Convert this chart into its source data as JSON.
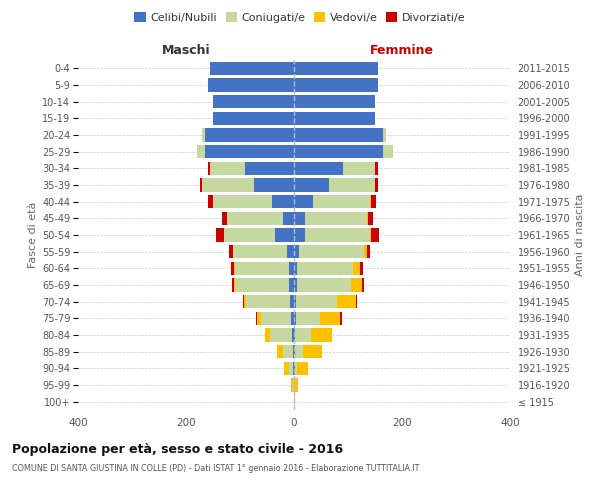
{
  "age_groups": [
    "100+",
    "95-99",
    "90-94",
    "85-89",
    "80-84",
    "75-79",
    "70-74",
    "65-69",
    "60-64",
    "55-59",
    "50-54",
    "45-49",
    "40-44",
    "35-39",
    "30-34",
    "25-29",
    "20-24",
    "15-19",
    "10-14",
    "5-9",
    "0-4"
  ],
  "birth_years": [
    "≤ 1915",
    "1916-1920",
    "1921-1925",
    "1926-1930",
    "1931-1935",
    "1936-1940",
    "1941-1945",
    "1946-1950",
    "1951-1955",
    "1956-1960",
    "1961-1965",
    "1966-1970",
    "1971-1975",
    "1976-1980",
    "1981-1985",
    "1986-1990",
    "1991-1995",
    "1996-2000",
    "2001-2005",
    "2006-2010",
    "2011-2015"
  ],
  "males": {
    "celibi": [
      0,
      0,
      1,
      2,
      4,
      6,
      8,
      9,
      10,
      13,
      35,
      20,
      40,
      75,
      90,
      165,
      165,
      150,
      150,
      160,
      155
    ],
    "coniugati": [
      0,
      2,
      8,
      18,
      40,
      55,
      80,
      100,
      100,
      100,
      95,
      105,
      110,
      95,
      65,
      15,
      5,
      0,
      0,
      0,
      0
    ],
    "vedovi": [
      0,
      3,
      10,
      12,
      10,
      8,
      5,
      3,
      2,
      0,
      0,
      0,
      0,
      0,
      0,
      0,
      0,
      0,
      0,
      0,
      0
    ],
    "divorziati": [
      0,
      0,
      0,
      0,
      0,
      2,
      2,
      2,
      5,
      8,
      15,
      8,
      10,
      5,
      5,
      0,
      0,
      0,
      0,
      0,
      0
    ]
  },
  "females": {
    "nubili": [
      0,
      0,
      1,
      2,
      2,
      3,
      4,
      5,
      5,
      10,
      20,
      20,
      35,
      65,
      90,
      165,
      165,
      150,
      150,
      155,
      155
    ],
    "coniugate": [
      0,
      2,
      5,
      15,
      30,
      45,
      75,
      100,
      105,
      120,
      120,
      115,
      105,
      85,
      60,
      18,
      5,
      0,
      0,
      0,
      0
    ],
    "vedove": [
      2,
      5,
      20,
      35,
      38,
      38,
      35,
      20,
      12,
      6,
      3,
      2,
      2,
      0,
      0,
      0,
      0,
      0,
      0,
      0,
      0
    ],
    "divorziate": [
      0,
      0,
      0,
      0,
      0,
      2,
      2,
      5,
      5,
      5,
      15,
      10,
      10,
      5,
      5,
      0,
      0,
      0,
      0,
      0,
      0
    ]
  },
  "colors": {
    "celibi": "#4472c4",
    "coniugati": "#c5d8a0",
    "vedovi": "#ffc000",
    "divorziati": "#cc0000"
  },
  "legend_labels": [
    "Celibi/Nubili",
    "Coniugati/e",
    "Vedovi/e",
    "Divorziati/e"
  ],
  "title": "Popolazione per età, sesso e stato civile - 2016",
  "subtitle": "COMUNE DI SANTA GIUSTINA IN COLLE (PD) - Dati ISTAT 1° gennaio 2016 - Elaborazione TUTTITALIA.IT",
  "xlabel_left": "Maschi",
  "xlabel_right": "Femmine",
  "ylabel_left": "Fasce di età",
  "ylabel_right": "Anni di nascita",
  "xlim": 400,
  "bg_color": "#ffffff",
  "grid_color": "#cccccc",
  "bar_height": 0.8
}
